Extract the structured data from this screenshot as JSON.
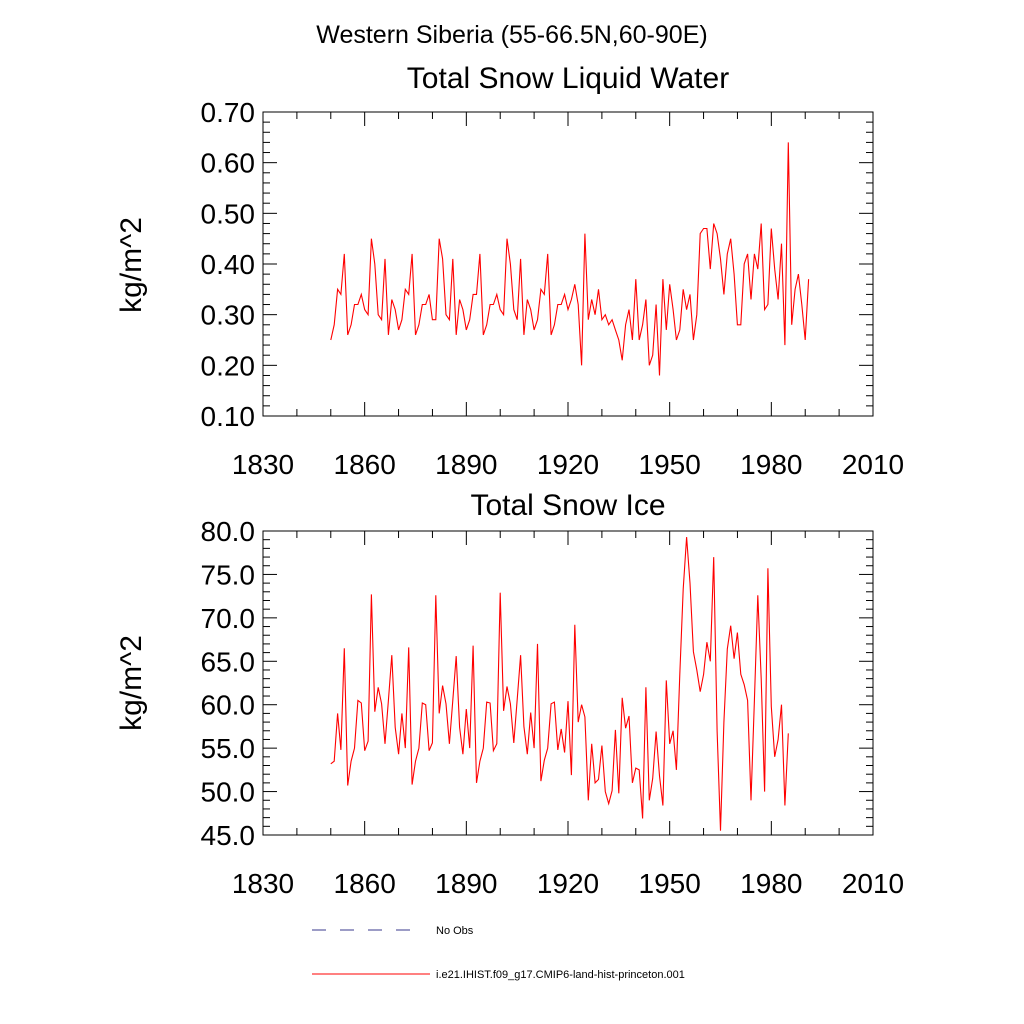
{
  "figure": {
    "main_title": "Western Siberia (55-66.5N,60-90E)"
  },
  "colors": {
    "series": "#ff0000",
    "obs": "#3a3a8c",
    "axis": "#000000"
  },
  "legend": {
    "entries": [
      {
        "label": "No Obs",
        "style": "dashed",
        "color": "#3a3a8c"
      },
      {
        "label": "i.e21.IHIST.f09_g17.CMIP6-land-hist-princeton.001",
        "style": "solid",
        "color": "#ff0000"
      }
    ]
  },
  "chart_data": [
    {
      "type": "line",
      "title": "Total Snow Liquid Water",
      "xlabel": "",
      "ylabel": "kg/m^2",
      "xlim": [
        1830,
        2010
      ],
      "ylim": [
        0.1,
        0.7
      ],
      "xticks": [
        "1830",
        "1860",
        "1890",
        "1920",
        "1950",
        "1980",
        "2010"
      ],
      "yticks": [
        "0.10",
        "0.20",
        "0.30",
        "0.40",
        "0.50",
        "0.60",
        "0.70"
      ],
      "grid": false,
      "series": [
        {
          "x_start": 1850,
          "x_step": 1,
          "values": [
            0.25,
            0.28,
            0.35,
            0.34,
            0.42,
            0.26,
            0.28,
            0.32,
            0.32,
            0.34,
            0.31,
            0.3,
            0.45,
            0.4,
            0.3,
            0.29,
            0.41,
            0.26,
            0.33,
            0.31,
            0.27,
            0.29,
            0.35,
            0.34,
            0.42,
            0.26,
            0.28,
            0.32,
            0.32,
            0.34,
            0.29,
            0.29,
            0.45,
            0.41,
            0.3,
            0.29,
            0.41,
            0.26,
            0.33,
            0.31,
            0.27,
            0.29,
            0.34,
            0.34,
            0.42,
            0.26,
            0.28,
            0.32,
            0.32,
            0.34,
            0.31,
            0.3,
            0.45,
            0.4,
            0.31,
            0.29,
            0.41,
            0.26,
            0.33,
            0.31,
            0.27,
            0.29,
            0.35,
            0.34,
            0.42,
            0.26,
            0.28,
            0.32,
            0.32,
            0.34,
            0.31,
            0.33,
            0.36,
            0.32,
            0.2,
            0.46,
            0.29,
            0.33,
            0.3,
            0.35,
            0.29,
            0.3,
            0.28,
            0.29,
            0.27,
            0.25,
            0.21,
            0.28,
            0.31,
            0.25,
            0.37,
            0.25,
            0.28,
            0.33,
            0.2,
            0.22,
            0.32,
            0.18,
            0.37,
            0.27,
            0.36,
            0.31,
            0.25,
            0.27,
            0.35,
            0.31,
            0.34,
            0.25,
            0.3,
            0.46,
            0.47,
            0.47,
            0.39,
            0.48,
            0.46,
            0.41,
            0.34,
            0.42,
            0.45,
            0.38,
            0.28,
            0.28,
            0.4,
            0.42,
            0.33,
            0.42,
            0.39,
            0.48,
            0.31,
            0.32,
            0.47,
            0.39,
            0.33,
            0.44,
            0.24,
            0.64,
            0.28,
            0.35,
            0.38,
            0.32,
            0.25,
            0.37
          ]
        }
      ]
    },
    {
      "type": "line",
      "title": "Total Snow Ice",
      "xlabel": "",
      "ylabel": "kg/m^2",
      "xlim": [
        1830,
        2010
      ],
      "ylim": [
        45.0,
        80.0
      ],
      "xticks": [
        "1830",
        "1860",
        "1890",
        "1920",
        "1950",
        "1980",
        "2010"
      ],
      "yticks": [
        "45.0",
        "50.0",
        "55.0",
        "60.0",
        "65.0",
        "70.0",
        "75.0",
        "80.0"
      ],
      "grid": false,
      "series": [
        {
          "x_start": 1850,
          "x_step": 1,
          "values": [
            53.2,
            53.5,
            59,
            54.8,
            66.5,
            50.7,
            53.5,
            55,
            60.5,
            60.2,
            54.7,
            55.8,
            72.7,
            59.2,
            62,
            60.1,
            55.5,
            60.5,
            65.7,
            57.4,
            54.3,
            59,
            55,
            66.6,
            50.8,
            53.5,
            55,
            60.2,
            60,
            54.7,
            55.6,
            72.6,
            59,
            62.2,
            60.1,
            55.5,
            60.5,
            65.6,
            57.4,
            54.3,
            59.5,
            55,
            66.8,
            51,
            53.5,
            55,
            60.3,
            60.2,
            54.7,
            55.5,
            72.9,
            59.3,
            62.1,
            60.1,
            55.6,
            60.6,
            65.7,
            57.5,
            54.3,
            59.1,
            55,
            67,
            51.2,
            53.6,
            55,
            60.1,
            60.3,
            54.8,
            57.2,
            54.5,
            60.4,
            51.9,
            69.2,
            58,
            60,
            58.6,
            49,
            55.5,
            51,
            51.4,
            55.3,
            50,
            48.6,
            50.1,
            57.1,
            49.8,
            60.8,
            57.3,
            58.7,
            51,
            52.7,
            52.5,
            46.9,
            62,
            49,
            51.5,
            56.9,
            51.8,
            48.4,
            62.8,
            55.5,
            57,
            52.5,
            63.5,
            73.3,
            79.3,
            74,
            66.1,
            64,
            61.5,
            63.5,
            67.2,
            65,
            77,
            57,
            45.5,
            58,
            66.4,
            69.1,
            65.3,
            68.3,
            63.5,
            62.3,
            60.5,
            49,
            60.5,
            72.6,
            63,
            50,
            75.7,
            59.8,
            54,
            56,
            60,
            48.4,
            56.7
          ]
        }
      ]
    }
  ]
}
